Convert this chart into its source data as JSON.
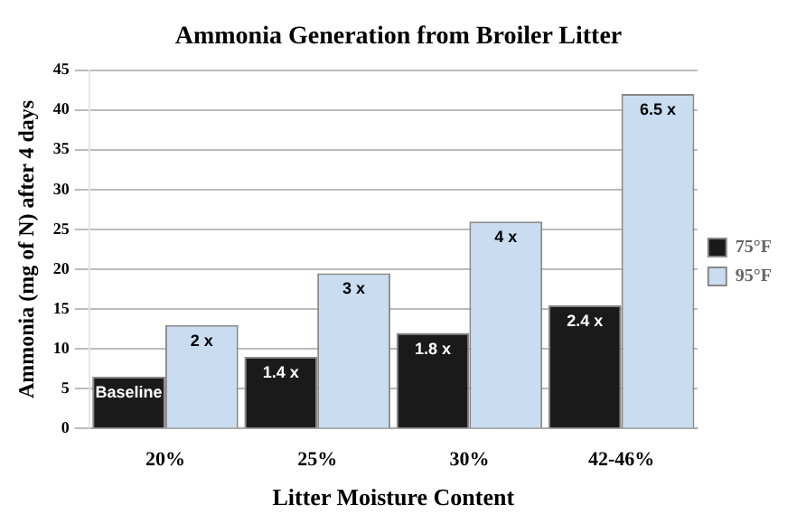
{
  "chart_data": {
    "type": "bar",
    "title": "Ammonia Generation from Broiler Litter",
    "xlabel": "Litter Moisture Content",
    "ylabel": "Ammonia (mg of N) after 4 days",
    "categories": [
      "20%",
      "25%",
      "30%",
      "42-46%"
    ],
    "series": [
      {
        "name": "75°F",
        "color": "#1a1a1a",
        "values": [
          6.5,
          9,
          12,
          15.5
        ]
      },
      {
        "name": "95°F",
        "color": "#c9dcf0",
        "values": [
          13,
          19.5,
          26,
          42
        ]
      }
    ],
    "annotations": [
      {
        "text": "Baseline",
        "x": "20%",
        "y": 6.5
      },
      {
        "text": "1.4 x",
        "x": "25%",
        "y": 9
      },
      {
        "text": "1.8 x",
        "x": "30%",
        "y": 12
      },
      {
        "text": "2.4 x",
        "x": "42-46%",
        "y": 15.5
      },
      {
        "text": "2 x",
        "x": "20%",
        "y": 13
      },
      {
        "text": "3 x",
        "x": "25%",
        "y": 19.5
      },
      {
        "text": "4 x",
        "x": "30%",
        "y": 26
      },
      {
        "text": "6.5 x",
        "x": "42-46%",
        "y": 42
      }
    ],
    "ylim": [
      0,
      45
    ],
    "yticks": [
      0,
      5,
      10,
      15,
      20,
      25,
      30,
      35,
      40,
      45
    ],
    "grid": "y",
    "legend": "right"
  }
}
